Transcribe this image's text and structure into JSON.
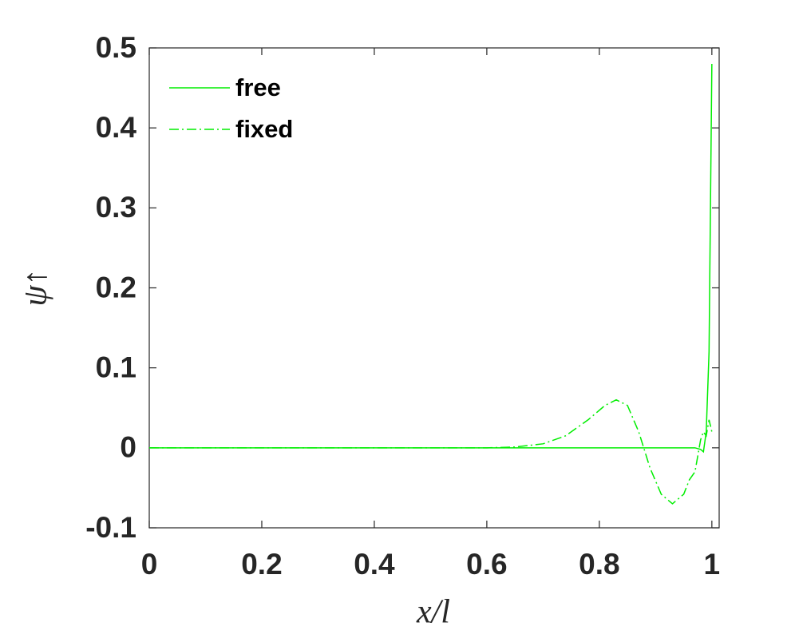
{
  "chart_data": {
    "type": "line",
    "xlabel": "x/l",
    "ylabel": "ψ↑",
    "x": [
      0,
      0.1,
      0.2,
      0.3,
      0.4,
      0.5,
      0.6,
      0.65,
      0.7,
      0.74,
      0.78,
      0.81,
      0.83,
      0.85,
      0.87,
      0.89,
      0.91,
      0.93,
      0.95,
      0.96,
      0.97,
      0.98,
      0.985,
      0.99,
      0.995,
      1.0
    ],
    "series": [
      {
        "name": "free",
        "color": "#00ee00",
        "linestyle": "solid",
        "values": [
          0,
          0,
          0,
          0,
          0,
          0,
          0,
          0,
          0,
          0,
          0,
          0,
          0,
          0,
          0,
          0,
          0,
          0,
          0,
          0,
          0,
          -0.002,
          -0.005,
          0.02,
          0.12,
          0.48
        ]
      },
      {
        "name": "fixed",
        "color": "#00ee00",
        "linestyle": "dashdot",
        "values": [
          0,
          0,
          0,
          0,
          0,
          0,
          0,
          0.001,
          0.005,
          0.015,
          0.035,
          0.053,
          0.06,
          0.053,
          0.02,
          -0.025,
          -0.058,
          -0.07,
          -0.058,
          -0.04,
          -0.03,
          0.01,
          0.02,
          0.015,
          0.035,
          0.02
        ]
      }
    ],
    "xlim": [
      0,
      1.013
    ],
    "ylim": [
      -0.1,
      0.5
    ],
    "xticks": [
      0,
      0.2,
      0.4,
      0.6,
      0.8,
      1
    ],
    "yticks": [
      -0.1,
      0,
      0.1,
      0.2,
      0.3,
      0.4,
      0.5
    ],
    "legend": "upper-left",
    "grid": false
  }
}
